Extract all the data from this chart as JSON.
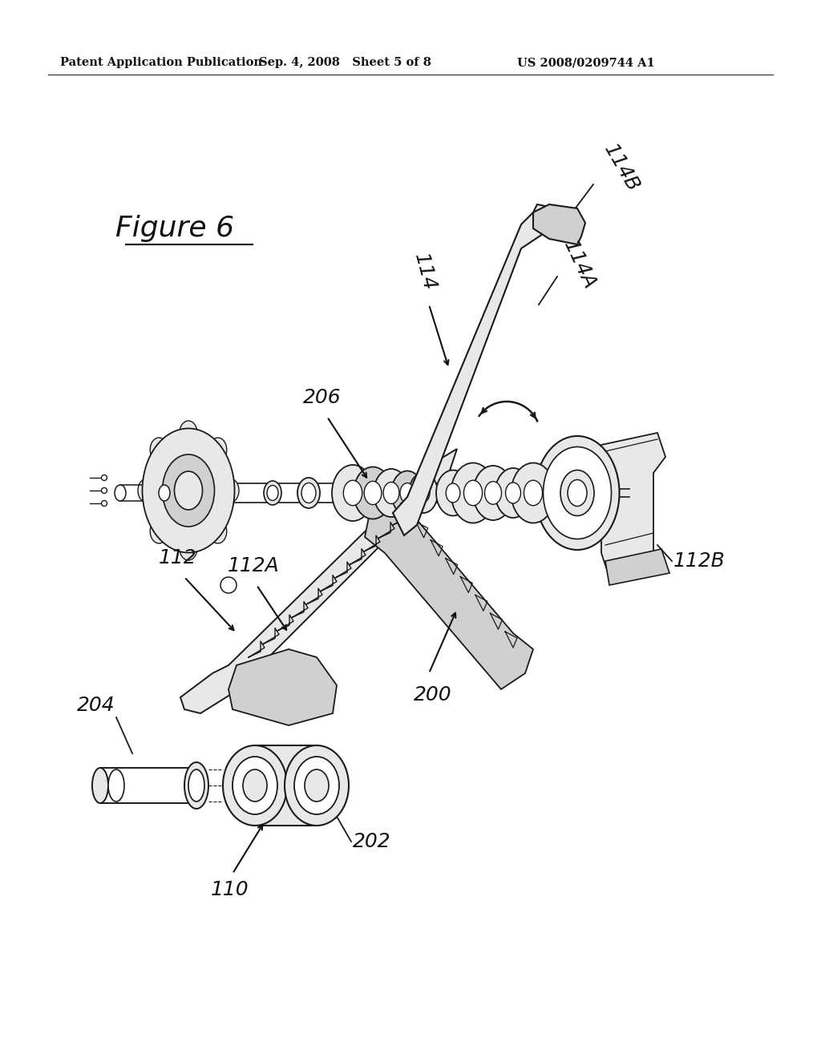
{
  "background_color": "#ffffff",
  "header_left": "Patent Application Publication",
  "header_center": "Sep. 4, 2008   Sheet 5 of 8",
  "header_right": "US 2008/0209744 A1",
  "figure_label": "Figure 6",
  "line_color": "#1a1a1a",
  "fill_light": "#e8e8e8",
  "fill_mid": "#d0d0d0",
  "fill_dark": "#b8b8b8"
}
